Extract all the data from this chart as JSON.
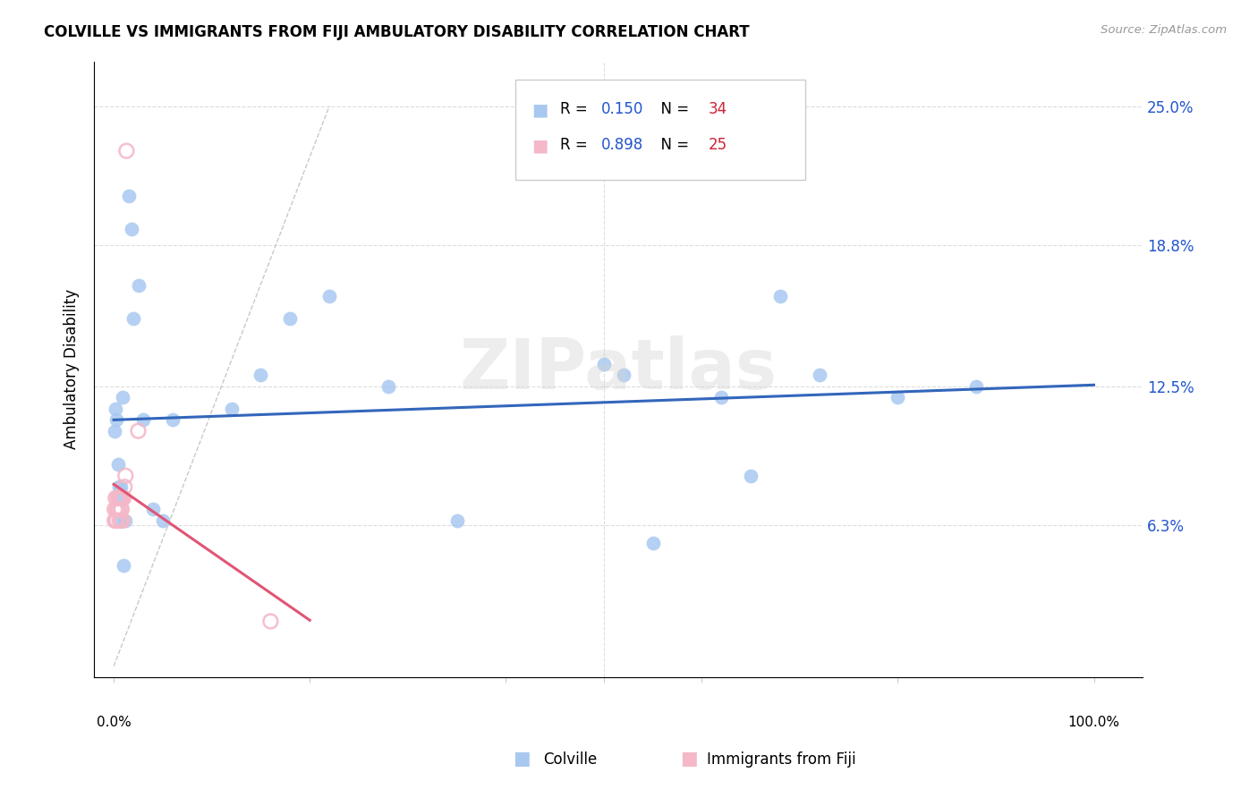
{
  "title": "COLVILLE VS IMMIGRANTS FROM FIJI AMBULATORY DISABILITY CORRELATION CHART",
  "source": "Source: ZipAtlas.com",
  "ylabel": "Ambulatory Disability",
  "yticks": [
    0.0,
    0.063,
    0.125,
    0.188,
    0.25
  ],
  "ytick_labels": [
    "",
    "6.3%",
    "12.5%",
    "18.8%",
    "25.0%"
  ],
  "colville_R": 0.15,
  "colville_N": 34,
  "fiji_R": 0.898,
  "fiji_N": 25,
  "watermark": "ZIPatlas",
  "colville_color": "#a8c8f0",
  "fiji_color": "#f4b8c8",
  "trend_colville_color": "#3366bb",
  "trend_fiji_color": "#e05575",
  "legend_R_color": "#2255cc",
  "legend_N_color": "#cc2233",
  "colville_x": [
    0.001,
    0.002,
    0.003,
    0.004,
    0.005,
    0.006,
    0.007,
    0.008,
    0.009,
    0.01,
    0.012,
    0.015,
    0.018,
    0.02,
    0.025,
    0.03,
    0.04,
    0.05,
    0.06,
    0.12,
    0.15,
    0.18,
    0.22,
    0.28,
    0.35,
    0.5,
    0.52,
    0.55,
    0.62,
    0.65,
    0.68,
    0.72,
    0.8,
    0.88
  ],
  "colville_y": [
    0.105,
    0.115,
    0.11,
    0.09,
    0.08,
    0.075,
    0.08,
    0.065,
    0.12,
    0.045,
    0.065,
    0.21,
    0.195,
    0.155,
    0.17,
    0.11,
    0.07,
    0.065,
    0.11,
    0.115,
    0.13,
    0.155,
    0.165,
    0.125,
    0.065,
    0.135,
    0.13,
    0.055,
    0.12,
    0.085,
    0.165,
    0.13,
    0.12,
    0.125
  ],
  "fiji_x": [
    0.001,
    0.001,
    0.002,
    0.002,
    0.003,
    0.003,
    0.004,
    0.004,
    0.005,
    0.005,
    0.006,
    0.006,
    0.007,
    0.007,
    0.007,
    0.008,
    0.008,
    0.009,
    0.009,
    0.01,
    0.011,
    0.012,
    0.013,
    0.025,
    0.16
  ],
  "fiji_y": [
    0.065,
    0.07,
    0.065,
    0.075,
    0.065,
    0.07,
    0.07,
    0.075,
    0.07,
    0.075,
    0.065,
    0.075,
    0.065,
    0.07,
    0.075,
    0.07,
    0.075,
    0.065,
    0.075,
    0.075,
    0.08,
    0.085,
    0.23,
    0.105,
    0.02
  ],
  "xlim": [
    -0.02,
    1.05
  ],
  "ylim": [
    -0.005,
    0.27
  ]
}
